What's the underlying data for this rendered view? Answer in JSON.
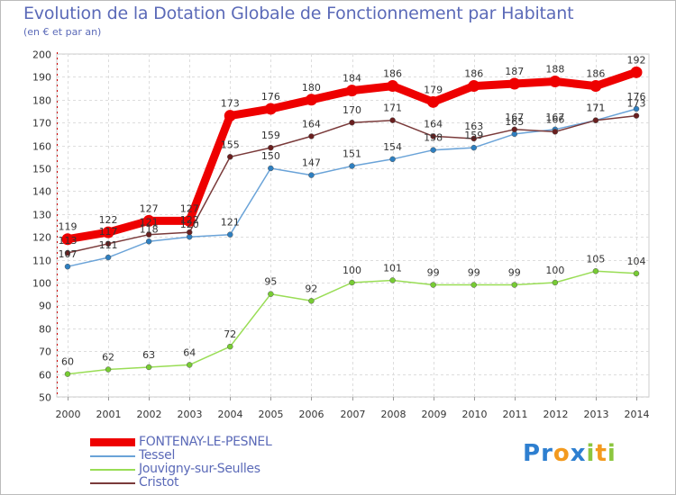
{
  "title": "Evolution de la Dotation Globale de Fonctionnement par Habitant",
  "subtitle": "(en € et par an)",
  "logo": {
    "letters": [
      {
        "ch": "P",
        "color": "#2e7fd0"
      },
      {
        "ch": "r",
        "color": "#2e7fd0"
      },
      {
        "ch": "o",
        "color": "#f39a1e"
      },
      {
        "ch": "x",
        "color": "#2e7fd0"
      },
      {
        "ch": "i",
        "color": "#8cc63f"
      },
      {
        "ch": "t",
        "color": "#f39a1e"
      },
      {
        "ch": "i",
        "color": "#8cc63f"
      }
    ]
  },
  "chart_data": {
    "type": "line",
    "title": "Evolution de la Dotation Globale de Fonctionnement par Habitant",
    "subtitle": "(en € et par an)",
    "xlabel": "",
    "ylabel": "",
    "ylim": [
      50,
      200
    ],
    "yticks": [
      50,
      60,
      70,
      80,
      90,
      100,
      110,
      120,
      130,
      140,
      150,
      160,
      170,
      180,
      190,
      200
    ],
    "grid": true,
    "legend_position": "bottom-left",
    "categories": [
      "2000",
      "2001",
      "2002",
      "2003",
      "2004",
      "2005",
      "2006",
      "2007",
      "2008",
      "2009",
      "2010",
      "2011",
      "2012",
      "2013",
      "2014"
    ],
    "series": [
      {
        "name": "Jouvigny-sur-Seulles",
        "color": "#99dd55",
        "marker": "#77cc33",
        "emphasis": false,
        "values": [
          60,
          62,
          63,
          64,
          72,
          95,
          92,
          100,
          101,
          99,
          99,
          99,
          100,
          105,
          104
        ],
        "labels": [
          "60",
          "62",
          "63",
          "64",
          "72",
          "95",
          "92",
          "100",
          "101",
          "99",
          "99",
          "99",
          "100",
          "105",
          "104"
        ]
      },
      {
        "name": "Tessel",
        "color": "#6aa3d8",
        "marker": "#2e7fc0",
        "emphasis": false,
        "values": [
          107,
          111,
          118,
          120,
          121,
          150,
          147,
          151,
          154,
          158,
          159,
          165,
          167,
          171,
          176
        ],
        "labels": [
          "107",
          "111",
          "118",
          "120",
          "121",
          "150",
          "147",
          "151",
          "154",
          "158",
          "159",
          "165",
          "167",
          "171",
          "176"
        ]
      },
      {
        "name": "Cristot",
        "color": "#7a3a3a",
        "marker": "#6a1f1f",
        "emphasis": false,
        "values": [
          113,
          117,
          121,
          122,
          155,
          159,
          164,
          170,
          171,
          164,
          163,
          167,
          166,
          171,
          173
        ],
        "labels": [
          "113",
          "117",
          "121",
          "122",
          "155",
          "159",
          "164",
          "170",
          "171",
          "164",
          "163",
          "167",
          "166",
          "171",
          "173"
        ]
      },
      {
        "name": "FONTENAY-LE-PESNEL",
        "color": "#ee0000",
        "marker": "#ee0000",
        "emphasis": true,
        "values": [
          119,
          122,
          127,
          127,
          173,
          176,
          180,
          184,
          186,
          179,
          186,
          187,
          188,
          186,
          192
        ],
        "labels": [
          "119",
          "122",
          "127",
          "127",
          "173",
          "176",
          "180",
          "184",
          "186",
          "179",
          "186",
          "187",
          "188",
          "186",
          "192"
        ]
      }
    ],
    "legend": [
      {
        "name": "FONTENAY-LE-PESNEL",
        "color": "#ee0000",
        "emphasis": true
      },
      {
        "name": "Tessel",
        "color": "#6aa3d8",
        "emphasis": false
      },
      {
        "name": "Jouvigny-sur-Seulles",
        "color": "#99dd55",
        "emphasis": false
      },
      {
        "name": "Cristot",
        "color": "#7a3a3a",
        "emphasis": false
      }
    ]
  }
}
